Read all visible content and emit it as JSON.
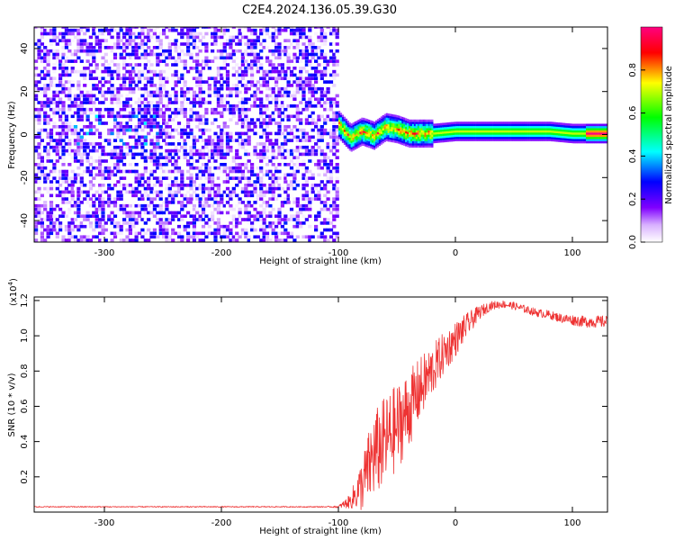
{
  "figure_title": "C2E4.2024.136.05.39.G30",
  "chart_data": [
    {
      "type": "heatmap",
      "xlabel": "Height of straight line (km)",
      "ylabel": "Frequency (Hz)",
      "xlim": [
        -360,
        130
      ],
      "ylim": [
        -50,
        50
      ],
      "x_ticks": [
        -300,
        -200,
        -100,
        0,
        100
      ],
      "y_ticks": [
        -40,
        -20,
        0,
        20,
        40
      ],
      "colorbar": {
        "label": "Normalized spectral amplitude",
        "range": [
          0.0,
          1.0
        ],
        "ticks": [
          "0.0",
          "0.2",
          "0.4",
          "0.6",
          "0.8"
        ],
        "colors": [
          "#ffffff",
          "#8000ff",
          "#0000ff",
          "#00ffff",
          "#00ff00",
          "#ffff00",
          "#ff0000",
          "#ff0080"
        ]
      },
      "regions": [
        {
          "x": [
            -360,
            -100
          ],
          "y": [
            -50,
            50
          ],
          "amplitude": 0.08
        },
        {
          "x": [
            -100,
            -20
          ],
          "y": [
            -6,
            8
          ],
          "amplitude": 0.55
        },
        {
          "x": [
            -20,
            130
          ],
          "y": [
            -4,
            4
          ],
          "amplitude": 0.75
        }
      ],
      "ridge": [
        {
          "x": -100,
          "y": 4
        },
        {
          "x": -90,
          "y": -2
        },
        {
          "x": -80,
          "y": 1
        },
        {
          "x": -70,
          "y": -1
        },
        {
          "x": -60,
          "y": 3
        },
        {
          "x": -50,
          "y": 2
        },
        {
          "x": -40,
          "y": 0
        },
        {
          "x": -30,
          "y": 0
        },
        {
          "x": -20,
          "y": 0
        },
        {
          "x": 0,
          "y": 1
        },
        {
          "x": 20,
          "y": 1
        },
        {
          "x": 40,
          "y": 1
        },
        {
          "x": 60,
          "y": 1
        },
        {
          "x": 80,
          "y": 1
        },
        {
          "x": 100,
          "y": 0
        },
        {
          "x": 130,
          "y": 0
        }
      ]
    },
    {
      "type": "line",
      "xlabel": "Height of straight line (km)",
      "ylabel": "SNR (10 * v/v)",
      "y_multiplier": "(x10",
      "y_multiplier_exp": "4",
      "y_multiplier_close": ")",
      "xlim": [
        -360,
        130
      ],
      "ylim": [
        0,
        12200
      ],
      "x_ticks": [
        -300,
        -200,
        -100,
        0,
        100
      ],
      "y_ticks": [
        2000,
        4000,
        6000,
        8000,
        10000,
        12000
      ],
      "y_tick_labels": [
        "0.2",
        "0.4",
        "0.6",
        "0.8",
        "1.0",
        "1.2"
      ],
      "line_color": "#ee3333",
      "series": [
        {
          "x": [
            -360,
            -300,
            -250,
            -200,
            -150,
            -110,
            -100,
            -90,
            -80,
            -70,
            -60,
            -50,
            -40,
            -30,
            -20,
            -10,
            0,
            10,
            20,
            30,
            40,
            50,
            60,
            70,
            80,
            90,
            100,
            110,
            120,
            130
          ],
          "values": [
            300,
            300,
            300,
            300,
            300,
            300,
            300,
            600,
            1500,
            3200,
            4000,
            4800,
            5800,
            7000,
            8000,
            9000,
            9800,
            10600,
            11300,
            11700,
            11800,
            11700,
            11500,
            11300,
            11200,
            11000,
            10900,
            10800,
            10800,
            10800
          ],
          "noise": [
            30,
            30,
            30,
            30,
            30,
            30,
            60,
            400,
            1500,
            2500,
            2600,
            2500,
            2200,
            1800,
            1500,
            1200,
            1000,
            700,
            400,
            250,
            220,
            220,
            220,
            230,
            240,
            260,
            300,
            320,
            340,
            350
          ]
        }
      ]
    }
  ]
}
